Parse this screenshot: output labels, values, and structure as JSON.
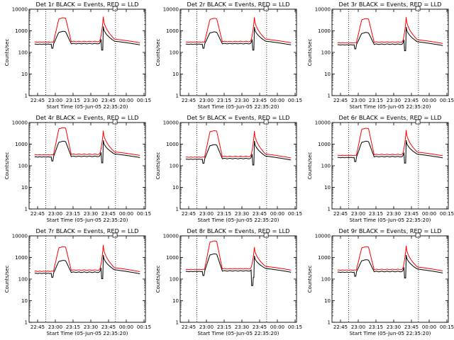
{
  "colors": {
    "events": "#000000",
    "lld": "#ff0000",
    "axes": "#000000",
    "background": "#ffffff"
  },
  "legend_colors": {
    "black": "BLACK",
    "red": "RED"
  },
  "chart_data": [
    {
      "type": "line",
      "title": "Det 1r BLACK = Events, RED = LLD",
      "xlabel": "Start Time (05-Jun-05 22:35:20)",
      "ylabel": "Counts/sec",
      "yscale": "log",
      "ylim": [
        1,
        10000
      ],
      "yticks": [
        "1",
        "10",
        "100",
        "1000",
        "10000"
      ],
      "x_minutes": [
        -5,
        40
      ],
      "xticks": [
        "22:45",
        "23:00",
        "23:15",
        "23:30",
        "23:45",
        "00:00",
        "00:15"
      ],
      "vlines_minutes": [
        10,
        73
      ],
      "profile": {
        "pre": 300,
        "rise_start": 17,
        "rise_end": 22,
        "fall_start": 28,
        "fall_end": 33,
        "flare_peak": 3800,
        "post": 320,
        "spike_center": 62,
        "spike_peak": 4500,
        "spike_decay": 72,
        "end": 280,
        "events_ratio": 0.8,
        "events_flare_peak": 900,
        "events_spike_peak": 1600
      }
    },
    {
      "type": "line",
      "title": "Det 2r BLACK = Events, RED = LLD",
      "xlabel": "Start Time (05-Jun-05 22:35:20)",
      "ylabel": "Counts/sec",
      "yscale": "log",
      "ylim": [
        1,
        10000
      ],
      "yticks": [
        "1",
        "10",
        "100",
        "1000",
        "10000"
      ],
      "x_minutes": [
        -5,
        40
      ],
      "xticks": [
        "22:45",
        "23:00",
        "23:15",
        "23:30",
        "23:45",
        "00:00",
        "00:15"
      ],
      "vlines_minutes": [
        10,
        73
      ],
      "profile": {
        "pre": 300,
        "rise_start": 17,
        "rise_end": 22,
        "fall_start": 28,
        "fall_end": 33,
        "flare_peak": 3600,
        "post": 320,
        "spike_center": 62,
        "spike_peak": 4200,
        "spike_decay": 72,
        "end": 280,
        "events_ratio": 0.8,
        "events_flare_peak": 850,
        "events_spike_peak": 1500
      }
    },
    {
      "type": "line",
      "title": "Det 3r BLACK = Events, RED = LLD",
      "xlabel": "Start Time (05-Jun-05 22:35:20)",
      "ylabel": "Counts/sec",
      "yscale": "log",
      "ylim": [
        1,
        10000
      ],
      "yticks": [
        "1",
        "10",
        "100",
        "1000",
        "10000"
      ],
      "x_minutes": [
        -5,
        40
      ],
      "xticks": [
        "22:45",
        "23:00",
        "23:15",
        "23:30",
        "23:45",
        "00:00",
        "00:15"
      ],
      "vlines_minutes": [
        10,
        73
      ],
      "profile": {
        "pre": 280,
        "rise_start": 17,
        "rise_end": 22,
        "fall_start": 28,
        "fall_end": 33,
        "flare_peak": 3500,
        "post": 300,
        "spike_center": 62,
        "spike_peak": 4300,
        "spike_decay": 72,
        "end": 260,
        "events_ratio": 0.8,
        "events_flare_peak": 800,
        "events_spike_peak": 1500
      }
    },
    {
      "type": "line",
      "title": "Det 4r BLACK = Events, RED = LLD",
      "xlabel": "Start Time (05-Jun-05 22:35:20)",
      "ylabel": "Counts/sec",
      "yscale": "log",
      "ylim": [
        1,
        10000
      ],
      "yticks": [
        "1",
        "10",
        "100",
        "1000",
        "10000"
      ],
      "x_minutes": [
        -5,
        40
      ],
      "xticks": [
        "22:45",
        "23:00",
        "23:15",
        "23:30",
        "23:45",
        "00:00",
        "00:15"
      ],
      "vlines_minutes": [
        10,
        73
      ],
      "profile": {
        "pre": 320,
        "rise_start": 17,
        "rise_end": 22,
        "fall_start": 28,
        "fall_end": 33,
        "flare_peak": 5500,
        "post": 340,
        "spike_center": 62,
        "spike_peak": 4200,
        "spike_decay": 72,
        "end": 300,
        "events_ratio": 0.8,
        "events_flare_peak": 1300,
        "events_spike_peak": 1500
      }
    },
    {
      "type": "line",
      "title": "Det 5r BLACK = Events, RED = LLD",
      "xlabel": "Start Time (05-Jun-05 22:35:20)",
      "ylabel": "Counts/sec",
      "yscale": "log",
      "ylim": [
        1,
        10000
      ],
      "yticks": [
        "1",
        "10",
        "100",
        "1000",
        "10000"
      ],
      "x_minutes": [
        -5,
        40
      ],
      "xticks": [
        "22:45",
        "23:00",
        "23:15",
        "23:30",
        "23:45",
        "00:00",
        "00:15"
      ],
      "vlines_minutes": [
        10,
        73
      ],
      "profile": {
        "pre": 250,
        "rise_start": 17,
        "rise_end": 22,
        "fall_start": 28,
        "fall_end": 33,
        "flare_peak": 4000,
        "post": 270,
        "spike_center": 62,
        "spike_peak": 4000,
        "spike_decay": 72,
        "end": 230,
        "events_ratio": 0.8,
        "events_flare_peak": 900,
        "events_spike_peak": 1400
      }
    },
    {
      "type": "line",
      "title": "Det 6r BLACK = Events, RED = LLD",
      "xlabel": "Start Time (05-Jun-05 22:35:20)",
      "ylabel": "Counts/sec",
      "yscale": "log",
      "ylim": [
        1,
        10000
      ],
      "yticks": [
        "1",
        "10",
        "100",
        "1000",
        "10000"
      ],
      "x_minutes": [
        -5,
        40
      ],
      "xticks": [
        "22:45",
        "23:00",
        "23:15",
        "23:30",
        "23:45",
        "00:00",
        "00:15"
      ],
      "vlines_minutes": [
        10,
        73
      ],
      "profile": {
        "pre": 300,
        "rise_start": 17,
        "rise_end": 22,
        "fall_start": 28,
        "fall_end": 33,
        "flare_peak": 5200,
        "post": 330,
        "spike_center": 62,
        "spike_peak": 4500,
        "spike_decay": 72,
        "end": 290,
        "events_ratio": 0.8,
        "events_flare_peak": 1300,
        "events_spike_peak": 1500
      }
    },
    {
      "type": "line",
      "title": "Det 7r BLACK = Events, RED = LLD",
      "xlabel": "Start Time (05-Jun-05 22:35:20)",
      "ylabel": "Counts/sec",
      "yscale": "log",
      "ylim": [
        1,
        10000
      ],
      "yticks": [
        "1",
        "10",
        "100",
        "1000",
        "10000"
      ],
      "x_minutes": [
        -5,
        40
      ],
      "xticks": [
        "22:45",
        "23:00",
        "23:15",
        "23:30",
        "23:45",
        "00:00",
        "00:15"
      ],
      "vlines_minutes": [
        10,
        73
      ],
      "profile": {
        "pre": 230,
        "rise_start": 17,
        "rise_end": 22,
        "fall_start": 28,
        "fall_end": 33,
        "flare_peak": 3000,
        "post": 260,
        "spike_center": 62,
        "spike_peak": 3800,
        "spike_decay": 72,
        "end": 220,
        "events_ratio": 0.8,
        "events_flare_peak": 700,
        "events_spike_peak": 1300
      }
    },
    {
      "type": "line",
      "title": "Det 8r BLACK = Events, RED = LLD",
      "xlabel": "Start Time (05-Jun-05 22:35:20)",
      "ylabel": "Counts/sec",
      "yscale": "log",
      "ylim": [
        1,
        10000
      ],
      "yticks": [
        "1",
        "10",
        "100",
        "1000",
        "10000"
      ],
      "x_minutes": [
        -5,
        40
      ],
      "xticks": [
        "22:45",
        "23:00",
        "23:15",
        "23:30",
        "23:45",
        "00:00",
        "00:15"
      ],
      "vlines_minutes": [
        10,
        73
      ],
      "profile": {
        "pre": 280,
        "rise_start": 17,
        "rise_end": 22,
        "fall_start": 28,
        "fall_end": 33,
        "flare_peak": 5500,
        "post": 300,
        "spike_center": 62,
        "spike_peak": 3000,
        "spike_decay": 72,
        "end": 260,
        "events_ratio": 0.8,
        "events_flare_peak": 1400,
        "events_spike_peak": 1200,
        "dip": 60
      }
    },
    {
      "type": "line",
      "title": "Det 9r BLACK = Events, RED = LLD",
      "xlabel": "Start Time (05-Jun-05 22:35:20)",
      "ylabel": "Counts/sec",
      "yscale": "log",
      "ylim": [
        1,
        10000
      ],
      "yticks": [
        "1",
        "10",
        "100",
        "1000",
        "10000"
      ],
      "x_minutes": [
        -5,
        40
      ],
      "xticks": [
        "22:45",
        "23:00",
        "23:15",
        "23:30",
        "23:45",
        "00:00",
        "00:15"
      ],
      "vlines_minutes": [
        10,
        73
      ],
      "profile": {
        "pre": 260,
        "rise_start": 17,
        "rise_end": 22,
        "fall_start": 28,
        "fall_end": 33,
        "flare_peak": 3000,
        "post": 280,
        "spike_center": 62,
        "spike_peak": 3500,
        "spike_decay": 72,
        "end": 240,
        "events_ratio": 0.8,
        "events_flare_peak": 750,
        "events_spike_peak": 1300
      }
    }
  ]
}
